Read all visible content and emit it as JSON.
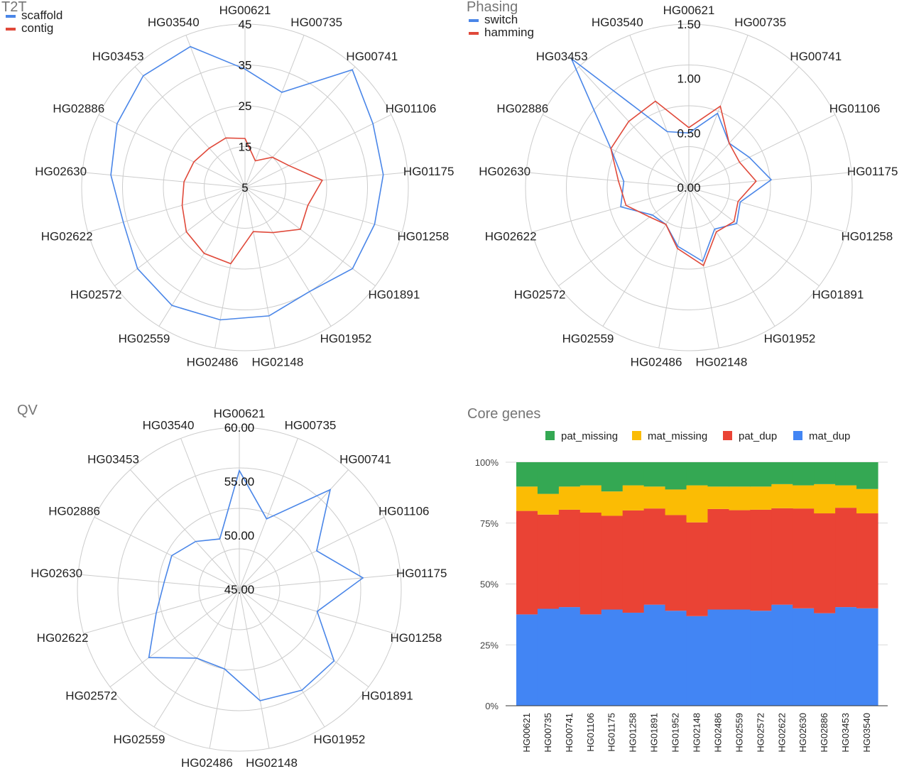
{
  "chart_data": [
    {
      "type": "radar",
      "title": "T2T",
      "categories": [
        "HG00621",
        "HG00735",
        "HG00741",
        "HG01106",
        "HG01175",
        "HG01258",
        "HG01891",
        "HG01952",
        "HG02148",
        "HG02486",
        "HG02559",
        "HG02572",
        "HG02622",
        "HG02630",
        "HG02886",
        "HG03453",
        "HG03540"
      ],
      "rlim": [
        5,
        45
      ],
      "ticks": [
        "5",
        "15",
        "25",
        "35",
        "45"
      ],
      "tick_values": [
        5,
        15,
        25,
        35,
        45
      ],
      "legend_position": "top-left",
      "series": [
        {
          "name": "scaffold",
          "color": "#4a86e8",
          "values": [
            34,
            30,
            44,
            40,
            39,
            38,
            38,
            35,
            37,
            38,
            39,
            38,
            36,
            38,
            40,
            42,
            42
          ]
        },
        {
          "name": "contig",
          "color": "#e0493a",
          "values": [
            17,
            12,
            15,
            17,
            24,
            21,
            22,
            18,
            16,
            24,
            24,
            23,
            21,
            20,
            19,
            18,
            18
          ]
        }
      ]
    },
    {
      "type": "radar",
      "title": "Phasing",
      "categories": [
        "HG00621",
        "HG00735",
        "HG00741",
        "HG01106",
        "HG01175",
        "HG01258",
        "HG01891",
        "HG01952",
        "HG02148",
        "HG02486",
        "HG02559",
        "HG02572",
        "HG02622",
        "HG02630",
        "HG02886",
        "HG03453",
        "HG03540"
      ],
      "rlim": [
        0,
        1.5
      ],
      "ticks": [
        "0.00",
        "0.50",
        "1.00",
        "1.50"
      ],
      "tick_values": [
        0,
        0.5,
        1.0,
        1.5
      ],
      "legend_position": "top-left",
      "series": [
        {
          "name": "switch",
          "color": "#4a86e8",
          "values": [
            0.5,
            0.73,
            0.55,
            0.62,
            0.76,
            0.49,
            0.55,
            0.45,
            0.69,
            0.55,
            0.4,
            0.42,
            0.65,
            0.6,
            0.8,
            1.6,
            0.55
          ]
        },
        {
          "name": "hamming",
          "color": "#e0493a",
          "values": [
            0.55,
            0.8,
            0.55,
            0.52,
            0.62,
            0.47,
            0.52,
            0.48,
            0.73,
            0.57,
            0.4,
            0.45,
            0.6,
            0.65,
            0.8,
            0.82,
            0.85
          ]
        }
      ]
    },
    {
      "type": "radar",
      "title": "QV",
      "categories": [
        "HG00621",
        "HG00735",
        "HG00741",
        "HG01106",
        "HG01175",
        "HG01258",
        "HG01891",
        "HG01952",
        "HG02148",
        "HG02486",
        "HG02559",
        "HG02572",
        "HG02622",
        "HG02630",
        "HG02886",
        "HG03453",
        "HG03540"
      ],
      "rlim": [
        45,
        60
      ],
      "ticks": [
        "45.00",
        "50.00",
        "55.00",
        "60.00"
      ],
      "tick_values": [
        45,
        50,
        55,
        60
      ],
      "legend_position": "none",
      "series": [
        {
          "name": "",
          "color": "#4a86e8",
          "values": [
            56.0,
            52.0,
            57.5,
            53.0,
            56.5,
            52.5,
            56.0,
            56.0,
            55.5,
            52.5,
            52.5,
            55.5,
            53.0,
            52.0,
            52.0,
            51.0,
            50.0
          ]
        }
      ]
    },
    {
      "type": "stacked_bar_100",
      "title": "Core genes",
      "categories": [
        "HG00621",
        "HG00735",
        "HG00741",
        "HG01106",
        "HG01175",
        "HG01258",
        "HG01891",
        "HG01952",
        "HG02148",
        "HG02486",
        "HG02559",
        "HG02572",
        "HG02622",
        "HG02630",
        "HG02886",
        "HG03453",
        "HG03540"
      ],
      "yticks": [
        "0%",
        "25%",
        "50%",
        "75%",
        "100%"
      ],
      "legend_position": "top",
      "series": [
        {
          "name": "mat_dup",
          "color": "#4285f4",
          "values": [
            37.5,
            39.8,
            40.5,
            37.5,
            39.5,
            38.2,
            41.5,
            39.0,
            36.8,
            39.5,
            39.5,
            39.0,
            41.5,
            40.0,
            38.0,
            40.5,
            40.0
          ]
        },
        {
          "name": "pat_dup",
          "color": "#ea4335",
          "values": [
            42.5,
            38.7,
            40.0,
            41.8,
            38.5,
            42.0,
            39.5,
            39.3,
            38.5,
            41.3,
            40.8,
            41.5,
            39.6,
            41.0,
            41.0,
            40.8,
            39.0
          ]
        },
        {
          "name": "mat_missing",
          "color": "#fbbc04",
          "values": [
            10.0,
            8.5,
            9.5,
            11.2,
            10.0,
            10.3,
            9.0,
            10.5,
            15.2,
            9.2,
            9.7,
            9.5,
            9.9,
            9.5,
            12.0,
            9.2,
            10.0
          ]
        },
        {
          "name": "pat_missing",
          "color": "#34a853",
          "values": [
            10.0,
            13.0,
            10.0,
            9.5,
            12.0,
            9.5,
            10.0,
            11.2,
            9.5,
            10.0,
            10.0,
            10.0,
            9.0,
            9.5,
            9.0,
            9.5,
            11.0
          ]
        }
      ]
    }
  ]
}
